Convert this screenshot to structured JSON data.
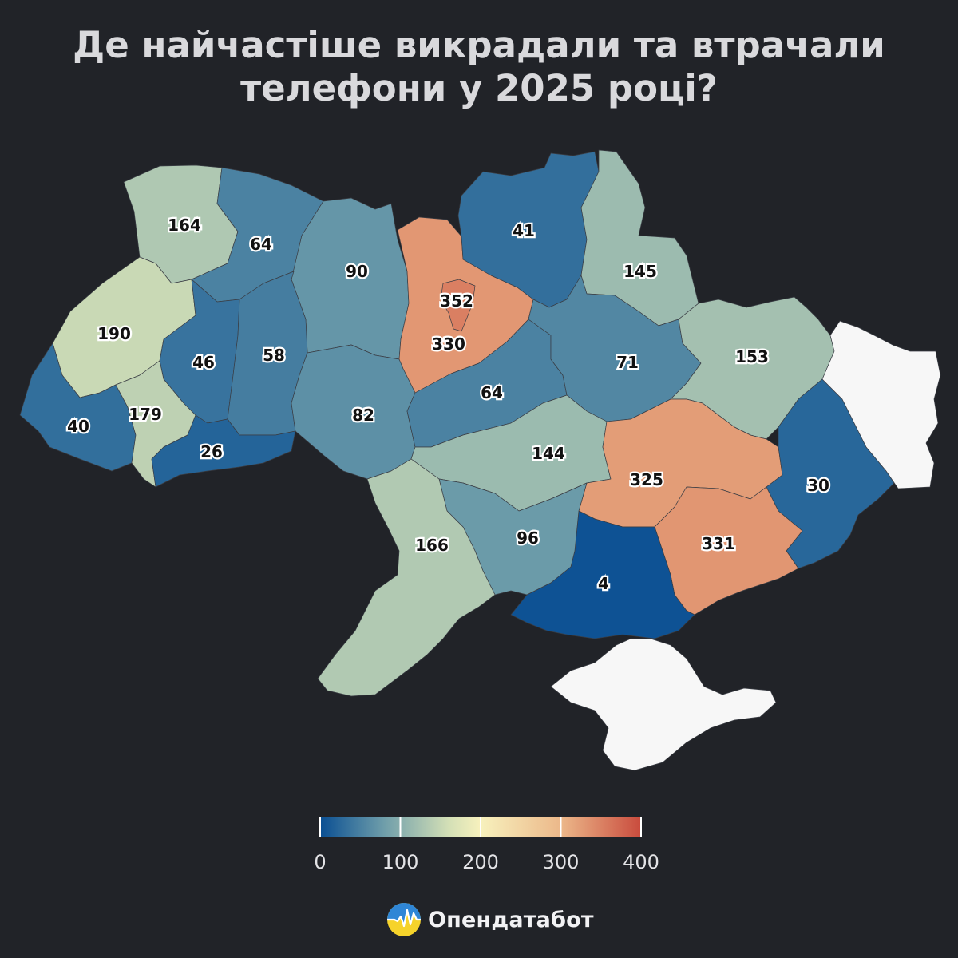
{
  "title": {
    "line1": "Де найчастіше викрадали та втрачали",
    "line2": "телефони у 2025 році?"
  },
  "map": {
    "regions": [
      {
        "id": "volyn",
        "value": 164
      },
      {
        "id": "rivne",
        "value": 64
      },
      {
        "id": "zhytomyr",
        "value": 90
      },
      {
        "id": "kyiv-oblast",
        "value": 330
      },
      {
        "id": "kyiv-city",
        "value": 352
      },
      {
        "id": "chernihiv",
        "value": 41
      },
      {
        "id": "sumy",
        "value": 145
      },
      {
        "id": "lviv",
        "value": 190
      },
      {
        "id": "ternopil",
        "value": 46
      },
      {
        "id": "khmelnytskyi",
        "value": 58
      },
      {
        "id": "vinnytsia",
        "value": 82
      },
      {
        "id": "cherkasy",
        "value": 64
      },
      {
        "id": "poltava",
        "value": 71
      },
      {
        "id": "kharkiv",
        "value": 153
      },
      {
        "id": "zakarpattia",
        "value": 40
      },
      {
        "id": "ivano-frankivsk",
        "value": 179
      },
      {
        "id": "chernivtsi",
        "value": 26
      },
      {
        "id": "kirovohrad",
        "value": 144
      },
      {
        "id": "dnipro",
        "value": 325
      },
      {
        "id": "donetsk",
        "value": 30
      },
      {
        "id": "zaporizhzhia",
        "value": 331
      },
      {
        "id": "kherson",
        "value": 4
      },
      {
        "id": "mykolaiv",
        "value": 96
      },
      {
        "id": "odesa",
        "value": 166
      },
      {
        "id": "luhansk",
        "value": null
      },
      {
        "id": "crimea",
        "value": null
      }
    ],
    "no_data_color": "#f7f7f7"
  },
  "legend": {
    "ticks": [
      {
        "value": 0,
        "label": "0"
      },
      {
        "value": 100,
        "label": "100"
      },
      {
        "value": 200,
        "label": "200"
      },
      {
        "value": 300,
        "label": "300"
      },
      {
        "value": 400,
        "label": "400"
      }
    ],
    "colors": [
      "#0a4f93",
      "#6f9eaa",
      "#d3dfb6",
      "#f7f1bd",
      "#ecb88a",
      "#c94b3d"
    ]
  },
  "brand": {
    "name": "Опендатабот",
    "icon": "opendatabot-logo-icon"
  }
}
